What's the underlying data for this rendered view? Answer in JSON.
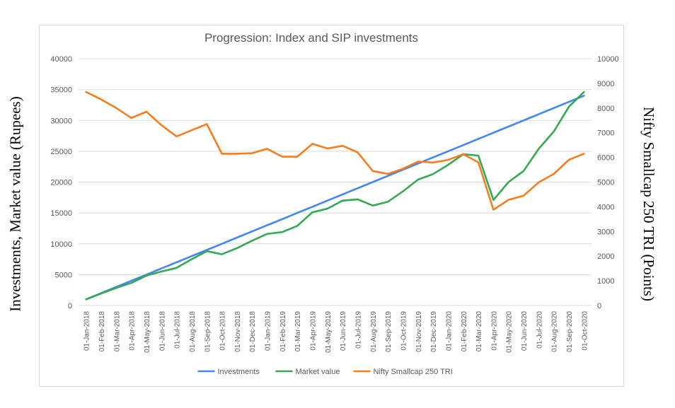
{
  "chart_data": {
    "type": "line",
    "title": "Progression: Index and SIP investments",
    "ylabel_left": "Investments, Market value (Rupees)",
    "ylabel_right": "Nifty Smallcap 250 TRI (Points)",
    "y_left_range": [
      0,
      40000
    ],
    "y_left_ticks": [
      "0",
      "5000",
      "10000",
      "15000",
      "20000",
      "25000",
      "30000",
      "35000",
      "40000"
    ],
    "y_right_range": [
      0,
      10000
    ],
    "y_right_ticks": [
      "0",
      "1000",
      "2000",
      "3000",
      "4000",
      "5000",
      "6000",
      "7000",
      "8000",
      "9000",
      "10000"
    ],
    "grid": true,
    "legend_position": "bottom",
    "categories": [
      "01-Jan-2018",
      "01-Feb-2018",
      "01-Mar-2018",
      "01-Apr-2018",
      "01-May-2018",
      "01-Jun-2018",
      "01-Jul-2018",
      "01-Aug-2018",
      "01-Sep-2018",
      "01-Oct-2018",
      "01-Nov-2018",
      "01-Dec-2018",
      "01-Jan-2019",
      "01-Feb-2019",
      "01-Mar-2019",
      "01-Apr-2019",
      "01-May-2019",
      "01-Jun-2019",
      "01-Jul-2019",
      "01-Aug-2019",
      "01-Sep-2019",
      "01-Oct-2019",
      "01-Nov-2019",
      "01-Dec-2019",
      "01-Jan-2020",
      "01-Feb-2020",
      "01-Mar-2020",
      "01-Apr-2020",
      "01-May-2020",
      "01-Jun-2020",
      "01-Jul-2020",
      "01-Aug-2020",
      "01-Sep-2020",
      "01-Oct-2020"
    ],
    "series": [
      {
        "name": "Investments",
        "axis": "left",
        "color": "#4285f4",
        "values": [
          1000,
          2000,
          3000,
          4000,
          5000,
          6000,
          7000,
          8000,
          9000,
          10000,
          11000,
          12000,
          13000,
          14000,
          15000,
          16000,
          17000,
          18000,
          19000,
          20000,
          21000,
          22000,
          23000,
          24000,
          25000,
          26000,
          27000,
          28000,
          29000,
          30000,
          31000,
          32000,
          33000,
          34000
        ]
      },
      {
        "name": "Market value",
        "axis": "left",
        "color": "#34a853",
        "values": [
          1000,
          1950,
          2850,
          3650,
          4850,
          5500,
          6100,
          7500,
          8800,
          8300,
          9300,
          10500,
          11600,
          11900,
          12900,
          15100,
          15700,
          17000,
          17200,
          16200,
          16800,
          18500,
          20400,
          21300,
          22800,
          24500,
          24300,
          17100,
          20000,
          21800,
          25400,
          28200,
          32200,
          34600
        ]
      },
      {
        "name": "Nifty Smallcap 250 TRI",
        "axis": "right",
        "color": "#f57c1f",
        "values": [
          8650,
          8350,
          8000,
          7600,
          7850,
          7300,
          6850,
          7100,
          7350,
          6150,
          6150,
          6170,
          6350,
          6030,
          6030,
          6550,
          6360,
          6470,
          6200,
          5450,
          5330,
          5540,
          5830,
          5790,
          5900,
          6130,
          5800,
          3880,
          4280,
          4450,
          4990,
          5330,
          5900,
          6150
        ]
      }
    ]
  }
}
